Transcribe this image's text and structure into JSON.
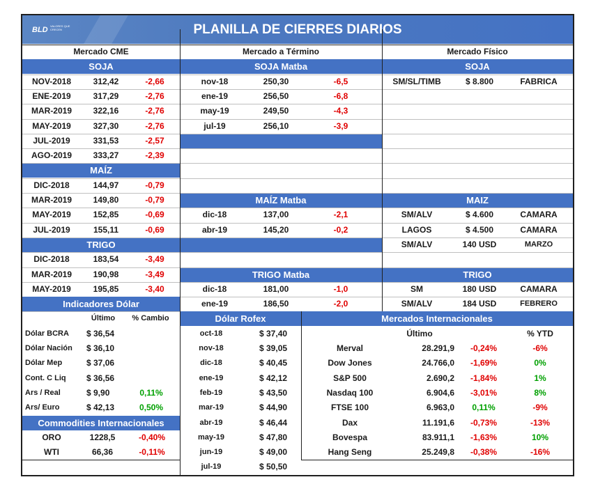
{
  "title": "PLANILLA DE CIERRES DIARIOS",
  "logo": {
    "brand": "BLD",
    "tagline": "VALORES QUE CRECEN"
  },
  "columns": {
    "cme": "Mercado CME",
    "termino": "Mercado a Término",
    "fisico": "Mercado Físico"
  },
  "cme": {
    "soja_label": "SOJA",
    "soja": [
      {
        "month": "NOV-2018",
        "price": "312,42",
        "change": "-2,66"
      },
      {
        "month": "ENE-2019",
        "price": "317,29",
        "change": "-2,76"
      },
      {
        "month": "MAR-2019",
        "price": "322,16",
        "change": "-2,76"
      },
      {
        "month": "MAY-2019",
        "price": "327,30",
        "change": "-2,76"
      },
      {
        "month": "JUL-2019",
        "price": "331,53",
        "change": "-2,57"
      },
      {
        "month": "AGO-2019",
        "price": "333,27",
        "change": "-2,39"
      }
    ],
    "maiz_label": "MAÍZ",
    "maiz": [
      {
        "month": "DIC-2018",
        "price": "144,97",
        "change": "-0,79"
      },
      {
        "month": "MAR-2019",
        "price": "149,80",
        "change": "-0,79"
      },
      {
        "month": "MAY-2019",
        "price": "152,85",
        "change": "-0,69"
      },
      {
        "month": "JUL-2019",
        "price": "155,11",
        "change": "-0,69"
      }
    ],
    "trigo_label": "TRIGO",
    "trigo": [
      {
        "month": "DIC-2018",
        "price": "183,54",
        "change": "-3,49"
      },
      {
        "month": "MAR-2019",
        "price": "190,98",
        "change": "-3,49"
      },
      {
        "month": "MAY-2019",
        "price": "195,85",
        "change": "-3,40"
      }
    ]
  },
  "termino": {
    "soja_label": "SOJA Matba",
    "soja": [
      {
        "month": "nov-18",
        "price": "250,30",
        "change": "-6,5"
      },
      {
        "month": "ene-19",
        "price": "256,50",
        "change": "-6,8"
      },
      {
        "month": "may-19",
        "price": "249,50",
        "change": "-4,3"
      },
      {
        "month": "jul-19",
        "price": "256,10",
        "change": "-3,9"
      }
    ],
    "maiz_label": "MAÍZ Matba",
    "maiz": [
      {
        "month": "dic-18",
        "price": "137,00",
        "change": "-2,1"
      },
      {
        "month": "abr-19",
        "price": "145,20",
        "change": "-0,2"
      }
    ],
    "trigo_label": "TRIGO Matba",
    "trigo": [
      {
        "month": "dic-18",
        "price": "181,00",
        "change": "-1,0"
      },
      {
        "month": "ene-19",
        "price": "186,50",
        "change": "-2,0"
      }
    ]
  },
  "fisico": {
    "soja_label": "SOJA",
    "soja": [
      {
        "place": "SM/SL/TIMB",
        "price": "$ 8.800",
        "buyer": "FABRICA"
      }
    ],
    "maiz_label": "MAIZ",
    "maiz": [
      {
        "place": "SM/ALV",
        "price": "$ 4.600",
        "buyer": "CAMARA"
      },
      {
        "place": "LAGOS",
        "price": "$ 4.500",
        "buyer": "CAMARA"
      },
      {
        "place": "SM/ALV",
        "price": "140 USD",
        "buyer": "MARZO"
      }
    ],
    "trigo_label": "TRIGO",
    "trigo": [
      {
        "place": "SM",
        "price": "180 USD",
        "buyer": "CAMARA"
      },
      {
        "place": "SM/ALV",
        "price": "184 USD",
        "buyer": "FEBRERO"
      }
    ]
  },
  "dolar": {
    "label": "Indicadores Dólar",
    "col_ultimo": "Último",
    "col_cambio": "% Cambio",
    "rows": [
      {
        "name": "Dólar BCRA",
        "value": "$ 36,54",
        "change": ""
      },
      {
        "name": "Dólar Nación",
        "value": "$ 36,10",
        "change": ""
      },
      {
        "name": "Dólar Mep",
        "value": "$ 37,06",
        "change": ""
      },
      {
        "name": "Cont. C Liq",
        "value": "$ 36,56",
        "change": ""
      },
      {
        "name": "Ars / Real",
        "value": "$ 9,90",
        "change": "0,11%"
      },
      {
        "name": "Ars/ Euro",
        "value": "$ 42,13",
        "change": "0,50%"
      }
    ]
  },
  "commodities": {
    "label": "Commodities Internacionales",
    "rows": [
      {
        "name": "ORO",
        "value": "1228,5",
        "change": "-0,40%"
      },
      {
        "name": "WTI",
        "value": "66,36",
        "change": "-0,11%"
      }
    ]
  },
  "rofex": {
    "label": "Dólar Rofex",
    "rows": [
      {
        "month": "oct-18",
        "price": "$ 37,40"
      },
      {
        "month": "nov-18",
        "price": "$ 39,05"
      },
      {
        "month": "dic-18",
        "price": "$ 40,45"
      },
      {
        "month": "ene-19",
        "price": "$ 42,12"
      },
      {
        "month": "feb-19",
        "price": "$ 43,50"
      },
      {
        "month": "mar-19",
        "price": "$ 44,90"
      },
      {
        "month": "abr-19",
        "price": "$ 46,44"
      },
      {
        "month": "may-19",
        "price": "$ 47,80"
      },
      {
        "month": "jun-19",
        "price": "$ 49,00"
      },
      {
        "month": "jul-19",
        "price": "$ 50,50"
      }
    ]
  },
  "internacionales": {
    "label": "Mercados Internacionales",
    "col_ultimo": "Último",
    "col_ytd": "% YTD",
    "rows": [
      {
        "name": "Merval",
        "value": "28.291,9",
        "change": "-0,24%",
        "ytd": "-6%"
      },
      {
        "name": "Dow Jones",
        "value": "24.766,0",
        "change": "-1,69%",
        "ytd": "0%"
      },
      {
        "name": "S&P 500",
        "value": "2.690,2",
        "change": "-1,84%",
        "ytd": "1%"
      },
      {
        "name": "Nasdaq 100",
        "value": "6.904,6",
        "change": "-3,01%",
        "ytd": "8%"
      },
      {
        "name": "FTSE 100",
        "value": "6.963,0",
        "change": "0,11%",
        "ytd": "-9%"
      },
      {
        "name": "Dax",
        "value": "11.191,6",
        "change": "-0,73%",
        "ytd": "-13%"
      },
      {
        "name": "Bovespa",
        "value": "83.911,1",
        "change": "-1,63%",
        "ytd": "10%"
      },
      {
        "name": "Hang Seng",
        "value": "25.249,8",
        "change": "-0,38%",
        "ytd": "-16%"
      }
    ]
  },
  "colors": {
    "header_blue": "#4472c4",
    "negative": "#e00000",
    "positive": "#00a000"
  }
}
